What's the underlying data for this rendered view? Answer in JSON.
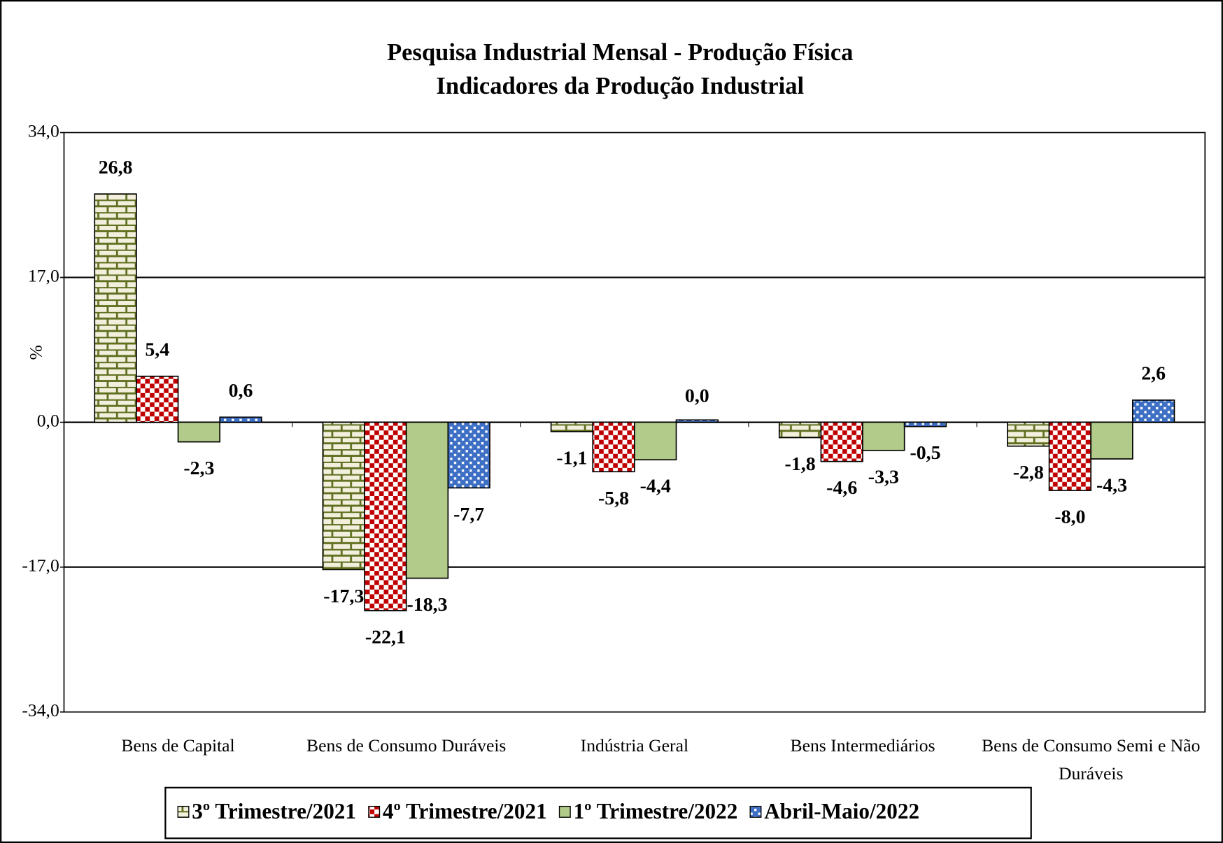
{
  "chart_data": {
    "type": "bar",
    "title": "Pesquisa Industrial Mensal - Produção Física",
    "subtitle": "Indicadores da Produção Industrial",
    "y_label": "%",
    "categories": [
      "Bens de Capital",
      "Bens de Consumo Duráveis",
      "Indústria Geral",
      "Bens Intermediários",
      "Bens de Consumo Semi e Não Duráveis"
    ],
    "series": [
      {
        "name": "3º Trimestre/2021",
        "color": "#5f6f1f",
        "values": [
          26.8,
          -17.3,
          -1.1,
          -1.8,
          -2.8
        ],
        "value_labels": [
          "26,8",
          "-17,3",
          "-1,1",
          "-1,8",
          "-2,8"
        ]
      },
      {
        "name": "4º Trimestre/2021",
        "color": "#c00000",
        "values": [
          5.4,
          -22.1,
          -5.8,
          -4.6,
          -8.0
        ],
        "value_labels": [
          "5,4",
          "-22,1",
          "-5,8",
          "-4,6",
          "-8,0"
        ]
      },
      {
        "name": "1º Trimestre/2022",
        "color": "#b3cb8a",
        "values": [
          -2.3,
          -18.3,
          -4.4,
          -3.3,
          -4.3
        ],
        "value_labels": [
          "-2,3",
          "-18,3",
          "-4,4",
          "-3,3",
          "-4,3"
        ]
      },
      {
        "name": "Abril-Maio/2022",
        "color": "#3d6fc4",
        "values": [
          0.6,
          -7.7,
          0.0,
          -0.5,
          2.6
        ],
        "value_labels": [
          "0,6",
          "-7,7",
          "0,0",
          "-0,5",
          "2,6"
        ]
      }
    ],
    "ylim": [
      -34,
      34
    ],
    "yticks": [
      {
        "value": -34,
        "label": "-34,0"
      },
      {
        "value": -17,
        "label": "-17,0"
      },
      {
        "value": 0,
        "label": "0,0"
      },
      {
        "value": 17,
        "label": "17,0"
      },
      {
        "value": 34,
        "label": "34,0"
      }
    ],
    "grid": true
  }
}
